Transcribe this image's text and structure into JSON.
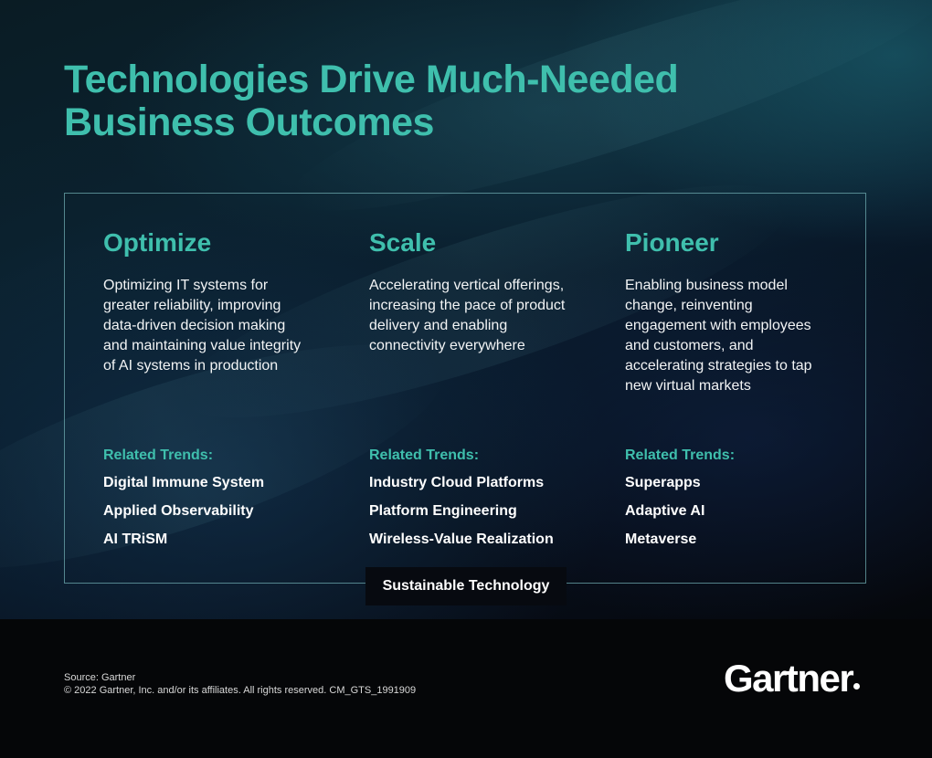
{
  "title": "Technologies Drive Much-Needed Business Outcomes",
  "columns": [
    {
      "heading": "Optimize",
      "description": "Optimizing IT systems for greater reliability, improving data-driven decision making and maintaining value integrity of AI systems in production",
      "related_label": "Related Trends:",
      "trends": [
        "Digital Immune System",
        "Applied Observability",
        "AI TRiSM"
      ]
    },
    {
      "heading": "Scale",
      "description": "Accelerating vertical offerings, increasing the pace of product delivery and enabling connectivity everywhere",
      "related_label": "Related Trends:",
      "trends": [
        "Industry Cloud Platforms",
        "Platform Engineering",
        "Wireless-Value Realization"
      ]
    },
    {
      "heading": "Pioneer",
      "description": "Enabling business model change, reinventing engagement with employees and customers, and accelerating strategies to tap new virtual markets",
      "related_label": "Related Trends:",
      "trends": [
        "Superapps",
        "Adaptive AI",
        "Metaverse"
      ]
    }
  ],
  "foundation": "Sustainable Technology",
  "footer": {
    "source": "Source: Gartner",
    "copyright": "© 2022 Gartner, Inc. and/or its affiliates. All rights reserved. CM_GTS_1991909"
  },
  "logo_text": "Gartner",
  "colors": {
    "accent": "#3fbfad",
    "background": "#050608",
    "text": "#ffffff"
  }
}
